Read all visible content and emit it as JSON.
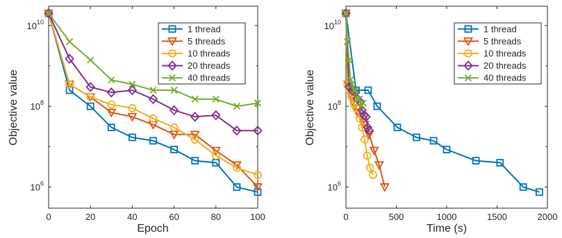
{
  "chart_data": [
    {
      "type": "line",
      "xlabel": "Epoch",
      "ylabel": "Objective value",
      "yscale": "log",
      "xlim": [
        0,
        100
      ],
      "ylim": [
        300000,
        30000000000
      ],
      "xticks": [
        "0",
        "20",
        "40",
        "60",
        "80",
        "100"
      ],
      "yticks": [
        {
          "base": "10",
          "exp": "6",
          "value": 1000000
        },
        {
          "base": "10",
          "exp": "8",
          "value": 100000000
        },
        {
          "base": "10",
          "exp": "10",
          "value": 10000000000
        }
      ],
      "grid": false,
      "legend_position": "top-right",
      "series": [
        {
          "name": "1 thread",
          "color": "#0072BD",
          "marker": "square",
          "x": [
            0,
            10,
            20,
            30,
            40,
            50,
            60,
            70,
            80,
            90,
            100
          ],
          "y": [
            20000000000,
            250000000,
            100000000,
            30000000,
            17000000,
            14000000,
            8500000,
            4500000,
            4000000,
            1000000,
            750000
          ]
        },
        {
          "name": "5 threads",
          "color": "#D95319",
          "marker": "triangle-down",
          "x": [
            0,
            10,
            20,
            30,
            40,
            50,
            60,
            70,
            80,
            90,
            100
          ],
          "y": [
            20000000000,
            350000000,
            170000000,
            70000000,
            55000000,
            35000000,
            20000000,
            20000000,
            8000000,
            3500000,
            1000000
          ]
        },
        {
          "name": "10 threads",
          "color": "#EDB120",
          "marker": "circle",
          "x": [
            0,
            10,
            20,
            30,
            40,
            50,
            60,
            70,
            80,
            90,
            100
          ],
          "y": [
            20000000000,
            350000000,
            170000000,
            110000000,
            90000000,
            50000000,
            30000000,
            15000000,
            6000000,
            3000000,
            2000000
          ]
        },
        {
          "name": "20 threads",
          "color": "#7E2F8E",
          "marker": "diamond",
          "x": [
            0,
            10,
            20,
            30,
            40,
            50,
            60,
            70,
            80,
            90,
            100
          ],
          "y": [
            20000000000,
            1500000000,
            300000000,
            220000000,
            250000000,
            150000000,
            80000000,
            55000000,
            60000000,
            25000000,
            25000000
          ]
        },
        {
          "name": "40 threads",
          "color": "#77AC30",
          "marker": "x",
          "x": [
            0,
            10,
            20,
            30,
            40,
            50,
            60,
            70,
            80,
            90,
            100
          ],
          "y": [
            20000000000,
            4000000000,
            1400000000,
            450000000,
            350000000,
            250000000,
            250000000,
            150000000,
            150000000,
            100000000,
            120000000
          ]
        }
      ]
    },
    {
      "type": "line",
      "xlabel": "Time (s)",
      "ylabel": "Objective value",
      "yscale": "log",
      "xlim": [
        0,
        2000
      ],
      "ylim": [
        300000,
        30000000000
      ],
      "xticks": [
        "0",
        "500",
        "1000",
        "1500",
        "2000"
      ],
      "yticks": [
        {
          "base": "10",
          "exp": "6",
          "value": 1000000
        },
        {
          "base": "10",
          "exp": "8",
          "value": 100000000
        },
        {
          "base": "10",
          "exp": "10",
          "value": 10000000000
        }
      ],
      "grid": false,
      "legend_position": "top-right",
      "series": [
        {
          "name": "1 thread",
          "color": "#0072BD",
          "marker": "square",
          "x": [
            0,
            100,
            220,
            310,
            510,
            700,
            870,
            1000,
            1290,
            1530,
            1760,
            1920
          ],
          "y": [
            20000000000,
            250000000,
            250000000,
            100000000,
            30000000,
            17000000,
            14000000,
            8500000,
            4500000,
            4000000,
            1000000,
            750000
          ]
        },
        {
          "name": "5 threads",
          "color": "#D95319",
          "marker": "triangle-down",
          "x": [
            0,
            20,
            40,
            60,
            85,
            115,
            150,
            185,
            230,
            280,
            330,
            385
          ],
          "y": [
            20000000000,
            350000000,
            250000000,
            170000000,
            110000000,
            70000000,
            55000000,
            35000000,
            20000000,
            8000000,
            3500000,
            1000000
          ]
        },
        {
          "name": "10 threads",
          "color": "#EDB120",
          "marker": "circle",
          "x": [
            0,
            15,
            35,
            55,
            80,
            105,
            135,
            160,
            185,
            210,
            240,
            270
          ],
          "y": [
            20000000000,
            350000000,
            250000000,
            170000000,
            110000000,
            90000000,
            50000000,
            30000000,
            15000000,
            6000000,
            3000000,
            2000000
          ]
        },
        {
          "name": "20 threads",
          "color": "#7E2F8E",
          "marker": "diamond",
          "x": [
            0,
            30,
            60,
            85,
            115,
            140,
            160,
            180,
            200,
            215,
            230
          ],
          "y": [
            20000000000,
            300000000,
            250000000,
            220000000,
            150000000,
            130000000,
            80000000,
            60000000,
            55000000,
            30000000,
            25000000
          ]
        },
        {
          "name": "40 threads",
          "color": "#77AC30",
          "marker": "x",
          "x": [
            0,
            15,
            30,
            45,
            60,
            80,
            95,
            110,
            130,
            150,
            170
          ],
          "y": [
            20000000000,
            4000000000,
            1400000000,
            450000000,
            350000000,
            250000000,
            250000000,
            150000000,
            150000000,
            100000000,
            120000000
          ]
        }
      ]
    }
  ]
}
